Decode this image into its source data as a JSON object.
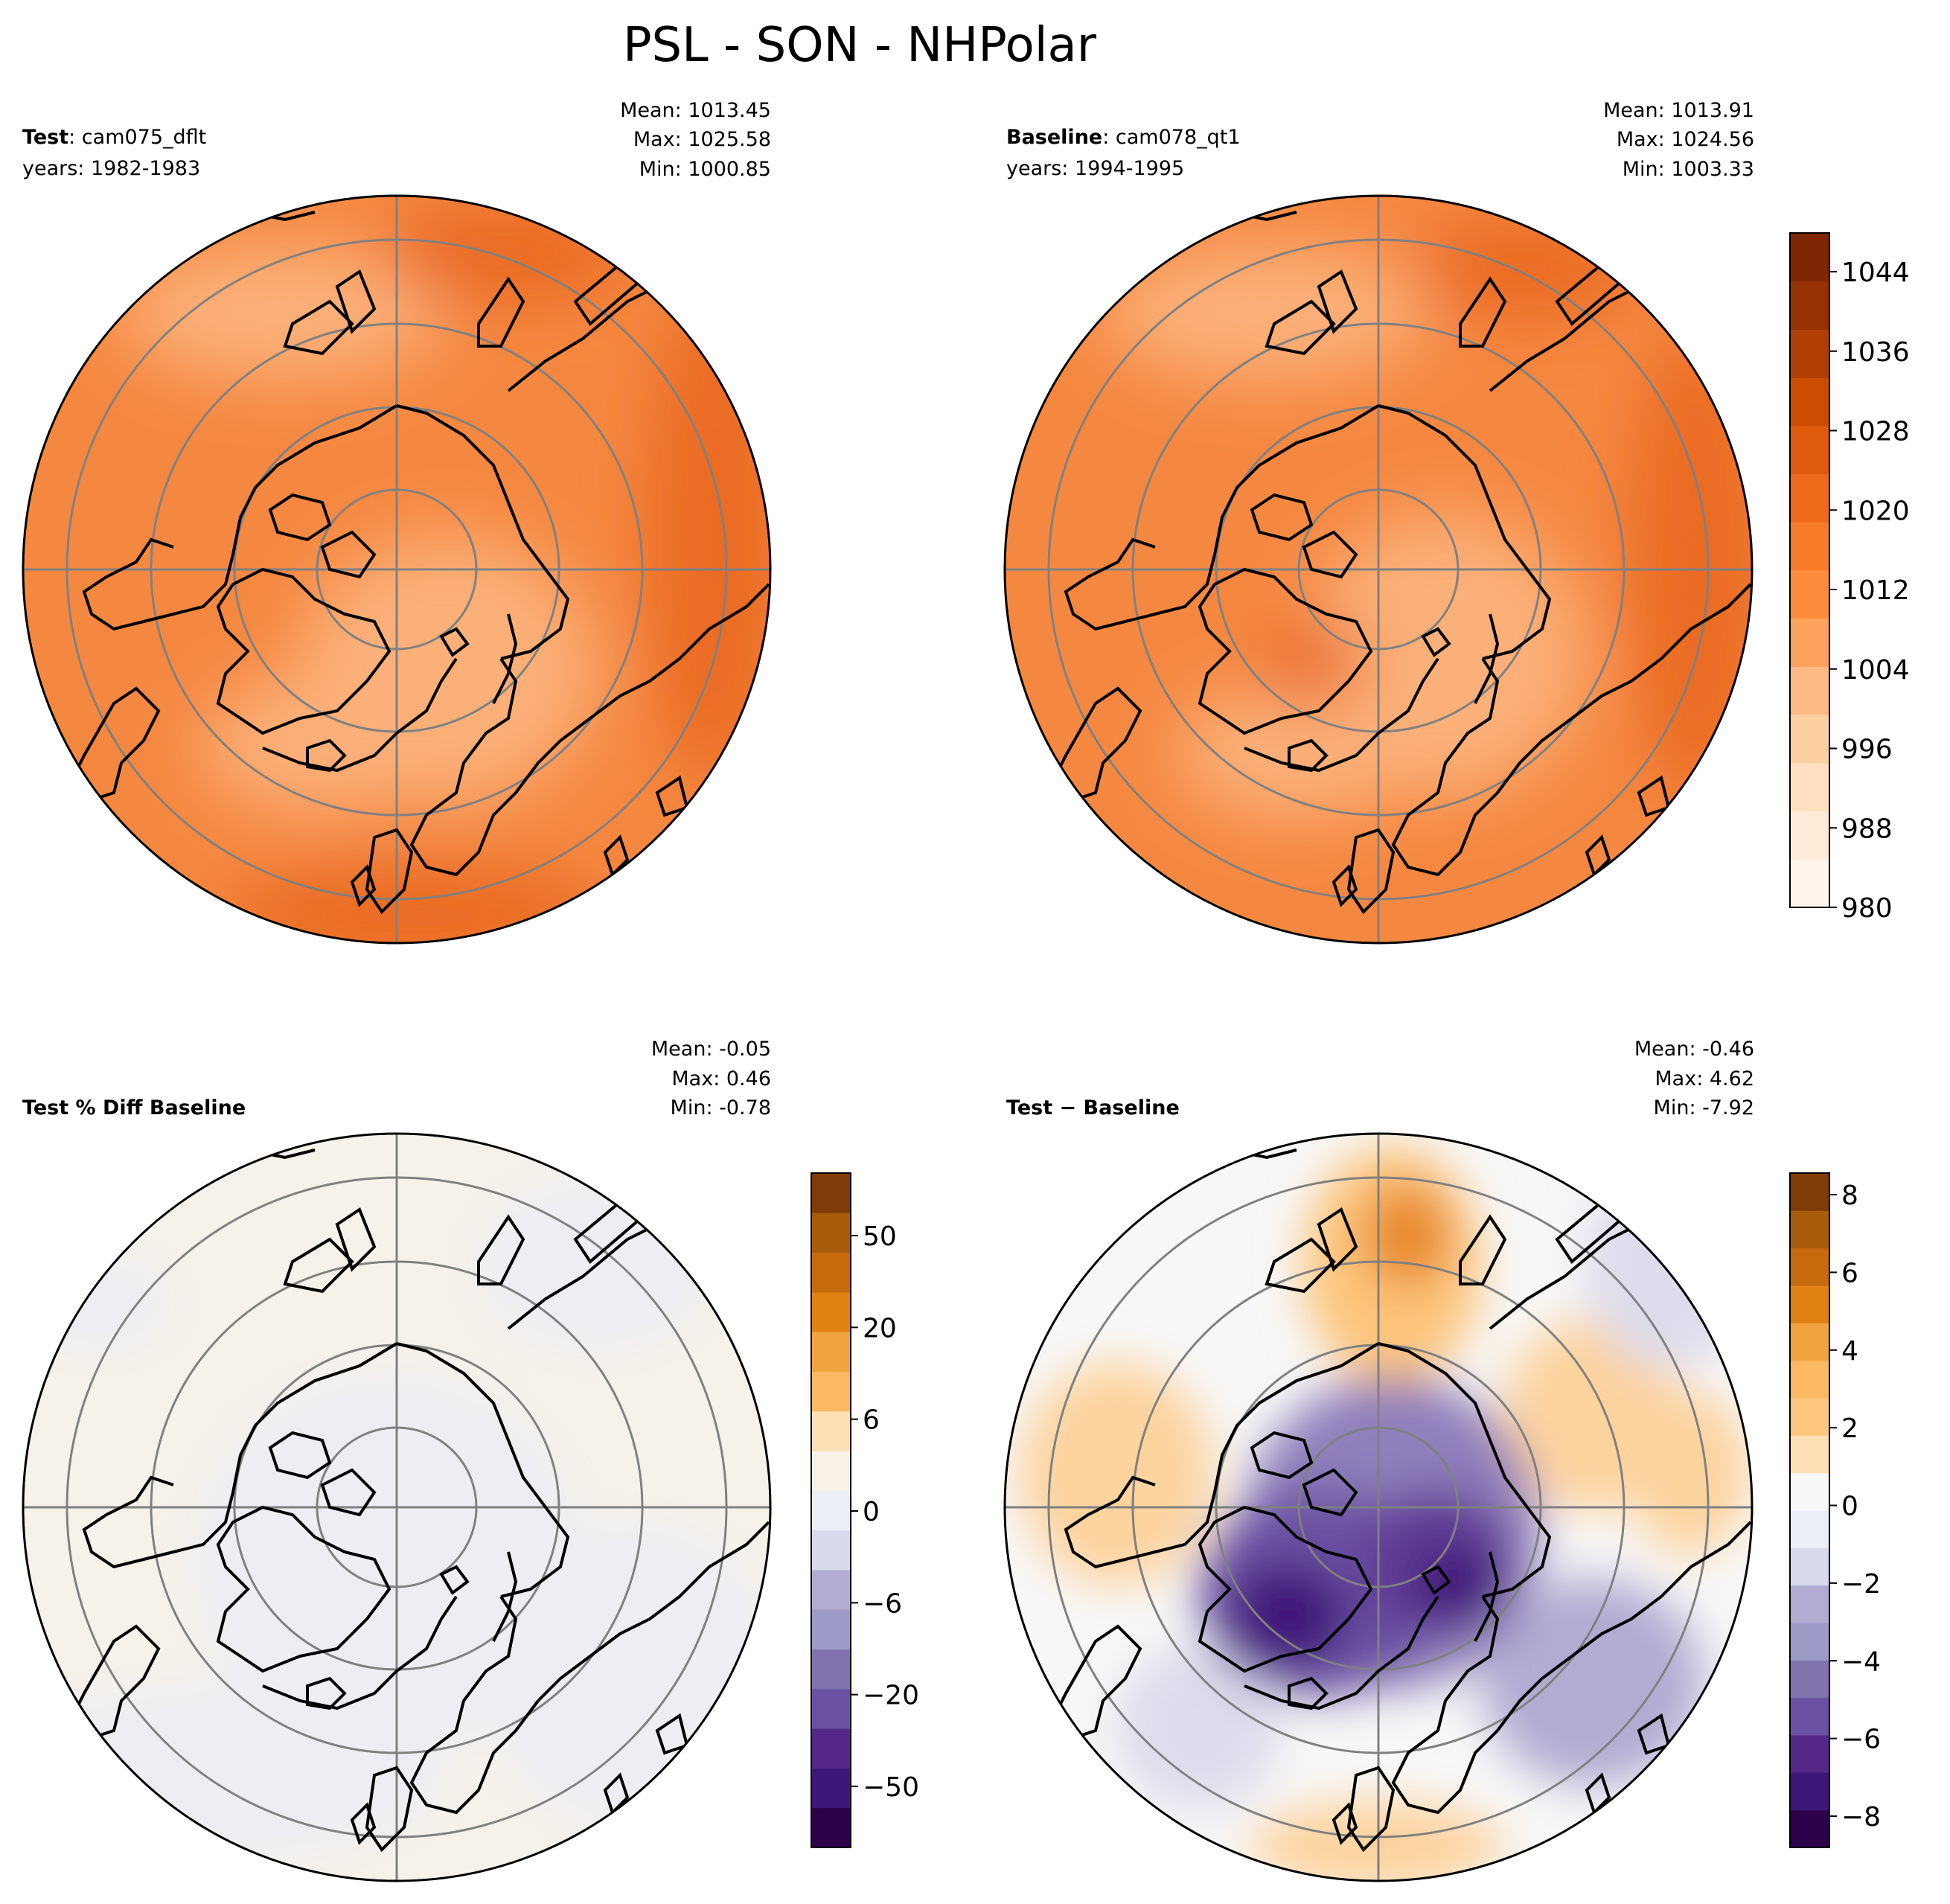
{
  "title": "PSL - SON - NHPolar",
  "panels": {
    "test": {
      "label_bold": "Test",
      "label_rest": ": cam075_dflt",
      "years": "years: 1982-1983",
      "mean": "Mean: 1013.45",
      "max": "Max: 1025.58",
      "min": "Min: 1000.85"
    },
    "baseline": {
      "label_bold": "Baseline",
      "label_rest": ": cam078_qt1",
      "years": "years: 1994-1995",
      "mean": "Mean: 1013.91",
      "max": "Max: 1024.56",
      "min": "Min: 1003.33"
    },
    "pctdiff": {
      "label_bold": "Test % Diff Baseline",
      "mean": "Mean: -0.05",
      "max": "Max:  0.46",
      "min": "Min: -0.78"
    },
    "diff": {
      "label_bold": "Test − Baseline",
      "mean": "Mean: -0.46",
      "max": "Max:  4.62",
      "min": "Min: -7.92"
    }
  },
  "colorbars": {
    "field": {
      "ticks": [
        "1044",
        "1036",
        "1028",
        "1020",
        "1012",
        "1004",
        "996",
        "988",
        "980"
      ],
      "colors": [
        "#fff5eb",
        "#feebd7",
        "#fee0c1",
        "#fdd0a2",
        "#fdba84",
        "#fda35d",
        "#fd8d3c",
        "#f77b29",
        "#ec6a1a",
        "#de5a0d",
        "#cc4c02",
        "#b13e03",
        "#963104",
        "#7f2704"
      ]
    },
    "pctdiff": {
      "ticks": [
        "50",
        "20",
        "6",
        "0",
        "−6",
        "−20",
        "−50"
      ],
      "colors": [
        "#2d004b",
        "#3f1779",
        "#542788",
        "#6a51a3",
        "#8073ac",
        "#9e9ac8",
        "#b2abd2",
        "#d8daeb",
        "#eceef5",
        "#f7f1e7",
        "#fde0b6",
        "#fdb863",
        "#f1a340",
        "#e08214",
        "#c66a0e",
        "#a85b0a",
        "#7f3b08"
      ]
    },
    "diff": {
      "ticks": [
        "8",
        "6",
        "4",
        "2",
        "0",
        "−2",
        "−4",
        "−6",
        "−8"
      ],
      "colors": [
        "#2d004b",
        "#3f1779",
        "#542788",
        "#6a51a3",
        "#8073ac",
        "#9e9ac8",
        "#b2abd2",
        "#d8daeb",
        "#eceef5",
        "#f7f7f7",
        "#fde0b6",
        "#fdc77f",
        "#fdb863",
        "#f1a340",
        "#e08214",
        "#c66a0e",
        "#a85b0a",
        "#7f3b08"
      ]
    }
  },
  "map_colors": {
    "test": [
      "#f58841",
      "#fbb079",
      "#ea6b21"
    ],
    "baseline": [
      "#f58841",
      "#fbb079",
      "#ea6b21"
    ],
    "pctdiff": [
      "#f6f1e9",
      "#eceef4"
    ],
    "diff": [
      "#f7f7f7",
      "#fdc57a",
      "#e8892b",
      "#b2abd2",
      "#5e3b94",
      "#3f1779"
    ]
  }
}
